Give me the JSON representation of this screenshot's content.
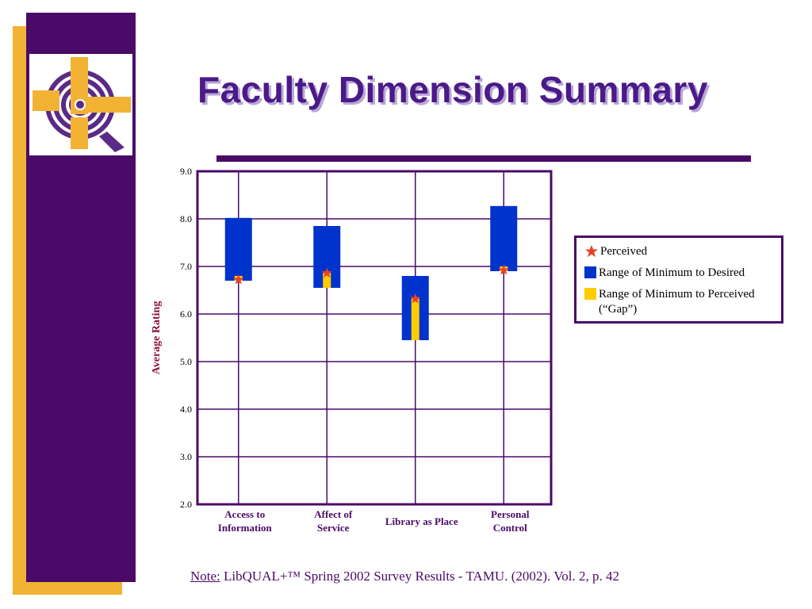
{
  "title": "Faculty Dimension Summary",
  "note": {
    "label": "Note:",
    "text": " LibQUAL+™ Spring 2002 Survey Results - TAMU. (2002). Vol. 2, p. 42"
  },
  "legend": {
    "perceived": "Perceived",
    "range_min_desired": "Range of Minimum to Desired",
    "range_min_perceived_line1": "Range of Minimum to Perceived",
    "range_min_perceived_line2": "(“Gap”)"
  },
  "colors": {
    "purple": "#4a0a68",
    "gold": "#f2b234",
    "range_blue": "#0033cc",
    "gap_yellow": "#ffcc00",
    "star_red": "#e8402a",
    "axis_label": "#8a1040"
  },
  "chart_data": {
    "type": "bar",
    "ylabel": "Average Rating",
    "xlabel": "",
    "ylim": [
      2.0,
      9.0
    ],
    "yticks": [
      "2.0",
      "3.0",
      "4.0",
      "5.0",
      "6.0",
      "7.0",
      "8.0",
      "9.0"
    ],
    "grid": true,
    "legend_position": "right",
    "categories": [
      {
        "line1": "Access to",
        "line2": "Information"
      },
      {
        "line1": "Affect of",
        "line2": "Service"
      },
      {
        "line1": "Library as Place",
        "line2": ""
      },
      {
        "line1": "Personal",
        "line2": "Control"
      }
    ],
    "series": [
      {
        "name": "Range of Minimum to Desired",
        "minimum": [
          6.7,
          6.55,
          5.45,
          6.9
        ],
        "desired": [
          8.02,
          7.85,
          6.8,
          8.27
        ]
      },
      {
        "name": "Range of Minimum to Perceived (“Gap”)",
        "minimum": [
          6.7,
          6.55,
          5.45,
          6.9
        ],
        "perceived": [
          6.72,
          6.86,
          6.32,
          6.92
        ]
      },
      {
        "name": "Perceived",
        "values": [
          6.72,
          6.86,
          6.32,
          6.92
        ]
      }
    ]
  }
}
